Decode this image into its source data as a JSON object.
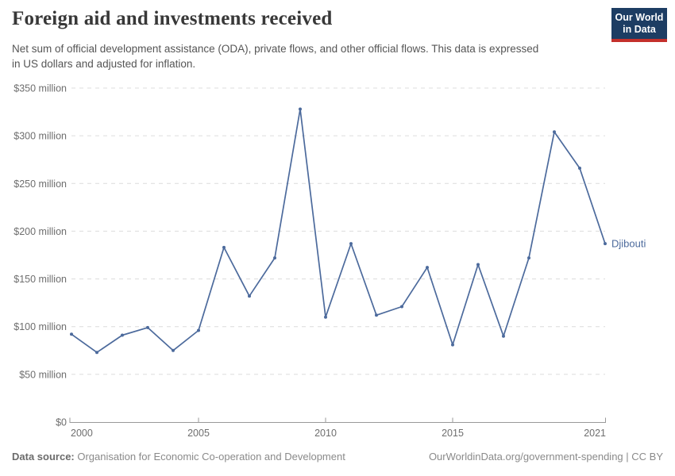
{
  "header": {
    "title": "Foreign aid and investments received",
    "subtitle_line1": "Net sum of official development assistance (ODA), private flows, and other official flows. This data is expressed",
    "subtitle_line2": "in US dollars and adjusted for inflation.",
    "logo": {
      "line1": "Our World",
      "line2": "in Data",
      "bg_color": "#1d3d63",
      "accent_color": "#c4302b"
    }
  },
  "chart_data": {
    "type": "line",
    "title": "Foreign aid and investments received",
    "xlabel": "",
    "ylabel": "",
    "x": [
      2000,
      2001,
      2002,
      2003,
      2004,
      2005,
      2006,
      2007,
      2008,
      2009,
      2010,
      2011,
      2012,
      2013,
      2014,
      2015,
      2016,
      2017,
      2018,
      2019,
      2020,
      2021
    ],
    "series": [
      {
        "name": "Djibouti",
        "color": "#4C6A9C",
        "unit": "US$ million",
        "values": [
          92,
          73,
          91,
          99,
          75,
          96,
          183,
          132,
          172,
          328,
          110,
          187,
          112,
          121,
          162,
          81,
          165,
          90,
          172,
          304,
          266,
          187
        ]
      }
    ],
    "ylim": [
      0,
      350
    ],
    "xlim": [
      2000,
      2021
    ],
    "grid": "horizontal-dashed",
    "legend_position": "end-of-line-label",
    "y_ticks": [
      {
        "value": 0,
        "label": "$0"
      },
      {
        "value": 50,
        "label": "$50 million"
      },
      {
        "value": 100,
        "label": "$100 million"
      },
      {
        "value": 150,
        "label": "$150 million"
      },
      {
        "value": 200,
        "label": "$200 million"
      },
      {
        "value": 250,
        "label": "$250 million"
      },
      {
        "value": 300,
        "label": "$300 million"
      },
      {
        "value": 350,
        "label": "$350 million"
      }
    ],
    "x_ticks": [
      {
        "value": 2000,
        "label": "2000"
      },
      {
        "value": 2005,
        "label": "2005"
      },
      {
        "value": 2010,
        "label": "2010"
      },
      {
        "value": 2015,
        "label": "2015"
      },
      {
        "value": 2021,
        "label": "2021"
      }
    ]
  },
  "footer": {
    "source_label": "Data source:",
    "source_value": " Organisation for Economic Co-operation and Development",
    "link_text": "OurWorldinData.org/government-spending | CC BY"
  }
}
